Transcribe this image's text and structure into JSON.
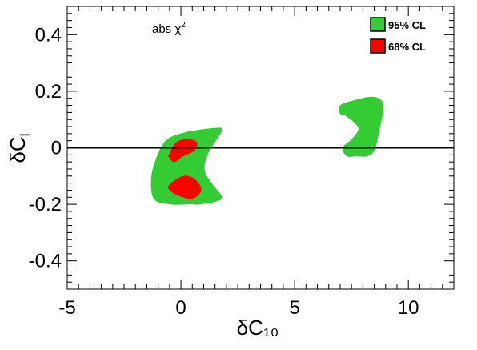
{
  "chart_data": {
    "type": "contour",
    "xlabel": "δC₁₀",
    "ylabel": "δC",
    "ylabel_subscript": "l",
    "xlim": [
      -5,
      12
    ],
    "ylim": [
      -0.5,
      0.5
    ],
    "x_ticks": [
      -5,
      0,
      5,
      10
    ],
    "x_tick_labels": [
      "-5",
      "0",
      "5",
      "10"
    ],
    "y_ticks": [
      -0.4,
      -0.2,
      0,
      0.2,
      0.4
    ],
    "y_tick_labels": [
      "-0.4",
      "-0.2",
      "0",
      "0.2",
      "0.4"
    ],
    "grid": false,
    "annotation": {
      "text": "abs χ",
      "superscript": "2"
    },
    "legend": {
      "placement": "top-right",
      "entries": [
        {
          "label": "95% CL",
          "color": "#33cc33"
        },
        {
          "label": "68% CL",
          "color": "#ff0000"
        }
      ]
    },
    "reference_line": {
      "y": 0,
      "color": "#000000"
    },
    "regions": [
      {
        "name": "95% CL",
        "color": "#33cc33",
        "points": [
          [
            -1.0,
            -0.02
          ],
          [
            -0.6,
            0.03
          ],
          [
            0.2,
            0.055
          ],
          [
            1.5,
            0.07
          ],
          [
            1.8,
            0.06
          ],
          [
            1.2,
            -0.02
          ],
          [
            1.05,
            -0.08
          ],
          [
            1.4,
            -0.13
          ],
          [
            1.8,
            -0.18
          ],
          [
            0.9,
            -0.2
          ],
          [
            0.4,
            -0.2
          ],
          [
            -0.5,
            -0.2
          ],
          [
            -1.2,
            -0.18
          ],
          [
            -1.3,
            -0.1
          ]
        ]
      },
      {
        "name": "95% CL",
        "color": "#33cc33",
        "points": [
          [
            7.0,
            0.15
          ],
          [
            7.7,
            0.17
          ],
          [
            8.5,
            0.18
          ],
          [
            8.9,
            0.15
          ],
          [
            8.7,
            0.05
          ],
          [
            8.5,
            -0.01
          ],
          [
            8.2,
            -0.03
          ],
          [
            7.7,
            -0.03
          ],
          [
            7.3,
            -0.03
          ],
          [
            7.1,
            0.0
          ],
          [
            7.5,
            0.03
          ],
          [
            7.8,
            0.07
          ],
          [
            7.3,
            0.11
          ],
          [
            7.0,
            0.12
          ]
        ]
      },
      {
        "name": "68% CL",
        "color": "#ff0000",
        "points": [
          [
            -0.5,
            -0.02
          ],
          [
            -0.2,
            0.02
          ],
          [
            0.3,
            0.03
          ],
          [
            0.7,
            0.02
          ],
          [
            0.6,
            -0.01
          ],
          [
            0.1,
            -0.03
          ],
          [
            -0.3,
            -0.05
          ],
          [
            -0.55,
            -0.03
          ]
        ]
      },
      {
        "name": "68% CL",
        "color": "#ff0000",
        "points": [
          [
            -0.5,
            -0.13
          ],
          [
            0.1,
            -0.1
          ],
          [
            0.6,
            -0.11
          ],
          [
            0.9,
            -0.15
          ],
          [
            0.5,
            -0.18
          ],
          [
            -0.1,
            -0.17
          ],
          [
            -0.5,
            -0.15
          ]
        ]
      }
    ]
  }
}
